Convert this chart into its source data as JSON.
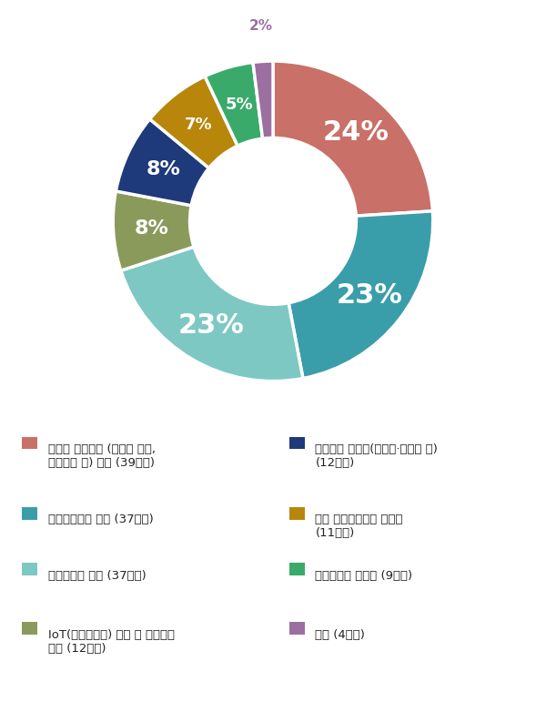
{
  "values": [
    24,
    23,
    23,
    8,
    8,
    7,
    5,
    2
  ],
  "colors": [
    "#c97068",
    "#3a9eaa",
    "#7ec8c4",
    "#8a9a5b",
    "#1e3a7a",
    "#b8860b",
    "#3aaa6a",
    "#9b6fa0"
  ],
  "pct_labels": [
    "24%",
    "23%",
    "23%",
    "8%",
    "8%",
    "7%",
    "5%",
    "2%"
  ],
  "bg_color": "#ffffff",
  "start_angle": 90,
  "legend_left": [
    [
      "#c97068",
      "아파트 평면설계 (가변형 벽체,\n틈새평면 등) 특화 (39업체)"
    ],
    [
      "#3a9eaa",
      "틈새분양전략 강화 (37업체)"
    ],
    [
      "#7ec8c4",
      "가격경쟁력 강화 (37업체)"
    ],
    [
      "#8a9a5b",
      "IoT(사물인터넷) 기술 등 첸단기술\n접목 (12업체)"
    ]
  ],
  "legend_right": [
    [
      "#1e3a7a",
      "마감자재 차별화(친환경\b7저탄소 등)\n(12업체)"
    ],
    [
      "#b8860b",
      "공동 커뮤니티공간 차별화\n(11업체)"
    ],
    [
      "#3aaa6a",
      "분양마케팅 차별화 (9업체)"
    ],
    [
      "#9b6fa0",
      "기타 (4업체)"
    ]
  ],
  "legend_left_raw": [
    "아파트 평면설계 (가변형 벽체,\n틈새평면 등) 특화 (39업체)",
    "틈새분양전략 강화 (37업체)",
    "가격경쟁력 강화 (37업체)",
    "IoT(사물인터넷) 기술 등 첸단기술\n접목 (12업체)"
  ],
  "legend_right_raw": [
    "마감자재 차별화(친환경·저탄소 등)\n(12업체)",
    "공동 커뮤니티공간 차별화\n(11업체)",
    "분양마케팅 차별화 (9업체)",
    "기타 (4업체)"
  ],
  "legend_colors_left": [
    "#c97068",
    "#3a9eaa",
    "#7ec8c4",
    "#8a9a5b"
  ],
  "legend_colors_right": [
    "#1e3a7a",
    "#b8860b",
    "#3aaa6a",
    "#9b6fa0"
  ]
}
